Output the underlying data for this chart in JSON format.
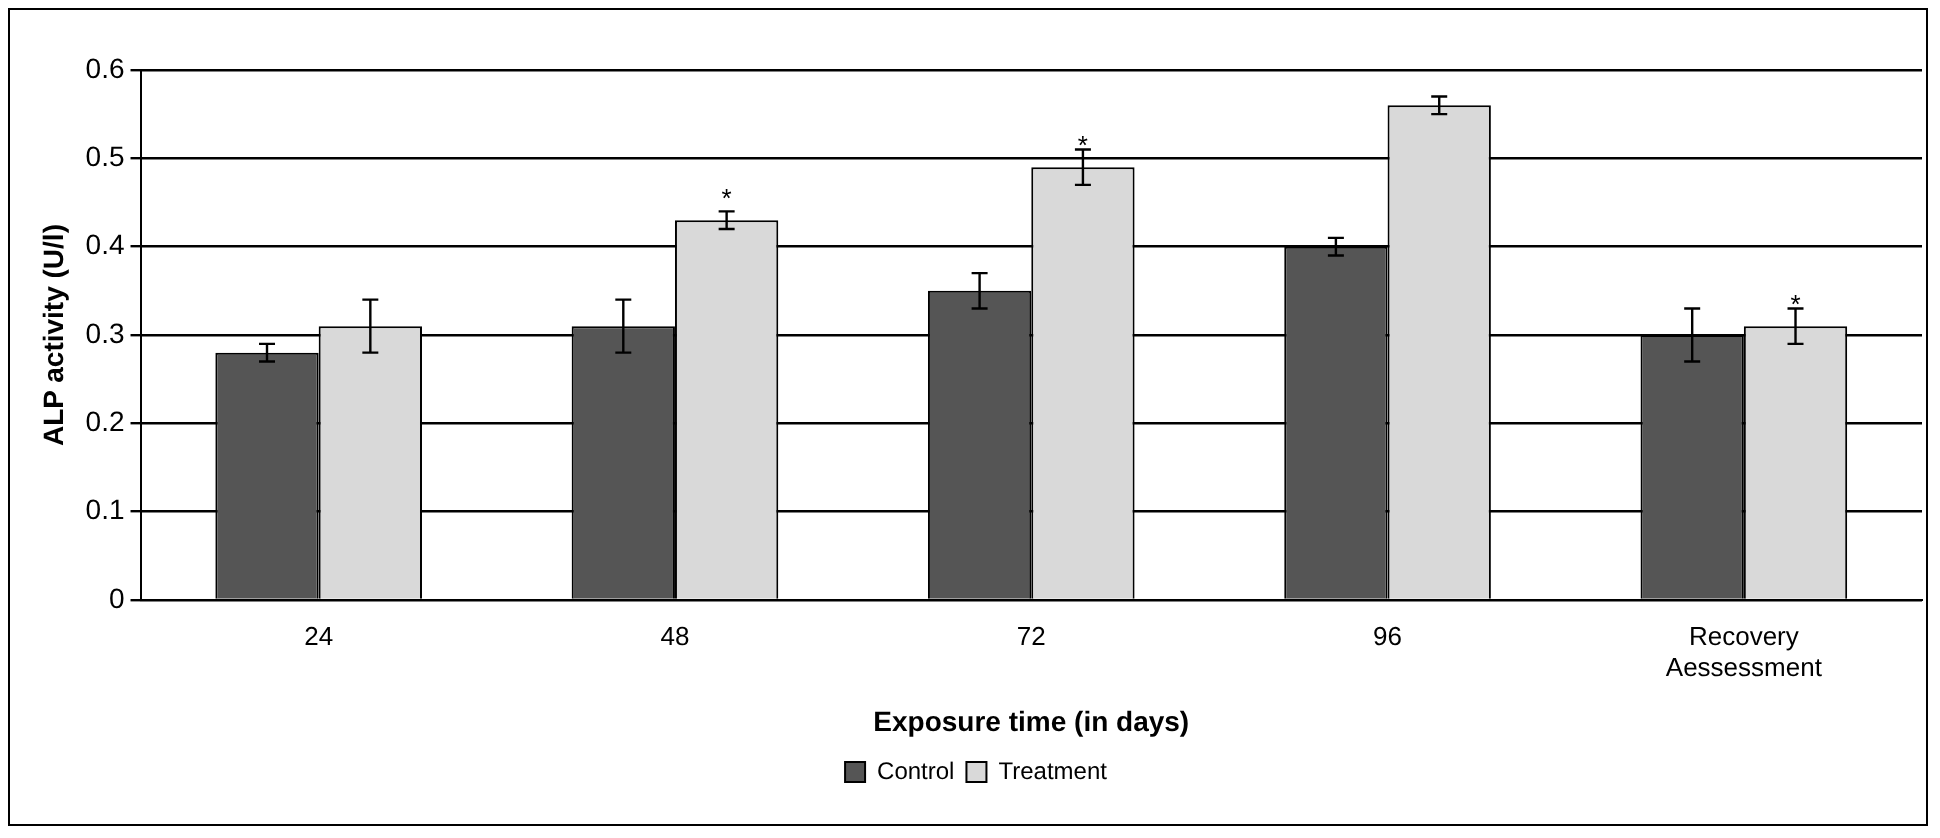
{
  "chart_data": {
    "type": "bar",
    "xlabel": "Exposure time (in days)",
    "ylabel": "ALP activity (U/l)",
    "categories": [
      "24",
      "48",
      "72",
      "96",
      "Recovery Aessessment"
    ],
    "series": [
      {
        "name": "Control",
        "color": "#555555",
        "values": [
          0.28,
          0.31,
          0.35,
          0.4,
          0.3
        ],
        "errors": [
          0.01,
          0.03,
          0.02,
          0.01,
          0.03
        ]
      },
      {
        "name": "Treatment",
        "color": "#d9d9d9",
        "values": [
          0.31,
          0.43,
          0.49,
          0.56,
          0.31
        ],
        "errors": [
          0.03,
          0.01,
          0.02,
          0.01,
          0.02
        ]
      }
    ],
    "ylim": [
      0,
      0.6
    ],
    "yticks": [
      0,
      0.1,
      0.2,
      0.3,
      0.4,
      0.5,
      0.6
    ],
    "grid": "y",
    "legend": "bottom",
    "annotations": [
      {
        "text": "*",
        "x": "48",
        "y": 0.43
      },
      {
        "text": "*",
        "x": "72",
        "y": 0.49
      },
      {
        "text": "*",
        "x": "Recovery Aessessment",
        "y": 0.31
      }
    ]
  }
}
